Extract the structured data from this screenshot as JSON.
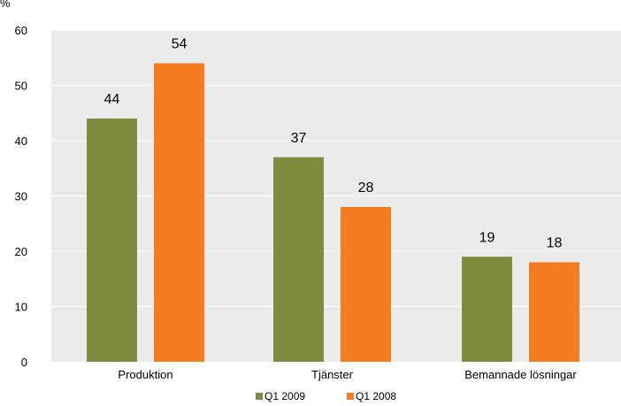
{
  "chart_data": {
    "type": "bar",
    "y_unit_label": "%",
    "categories": [
      "Produktion",
      "Tjänster",
      "Bemannade lösningar"
    ],
    "series": [
      {
        "name": "Q1 2009",
        "color": "#7f8c3f",
        "values": [
          44,
          37,
          19
        ]
      },
      {
        "name": "Q1 2008",
        "color": "#f47b20",
        "values": [
          54,
          28,
          18
        ]
      }
    ],
    "ylim": [
      0,
      60
    ],
    "y_ticks": [
      0,
      10,
      20,
      30,
      40,
      50,
      60
    ],
    "grid": true,
    "plot_background": "#ebebeb",
    "grid_color": "#ffffff",
    "legend_position": "bottom-center",
    "data_labels": true
  }
}
